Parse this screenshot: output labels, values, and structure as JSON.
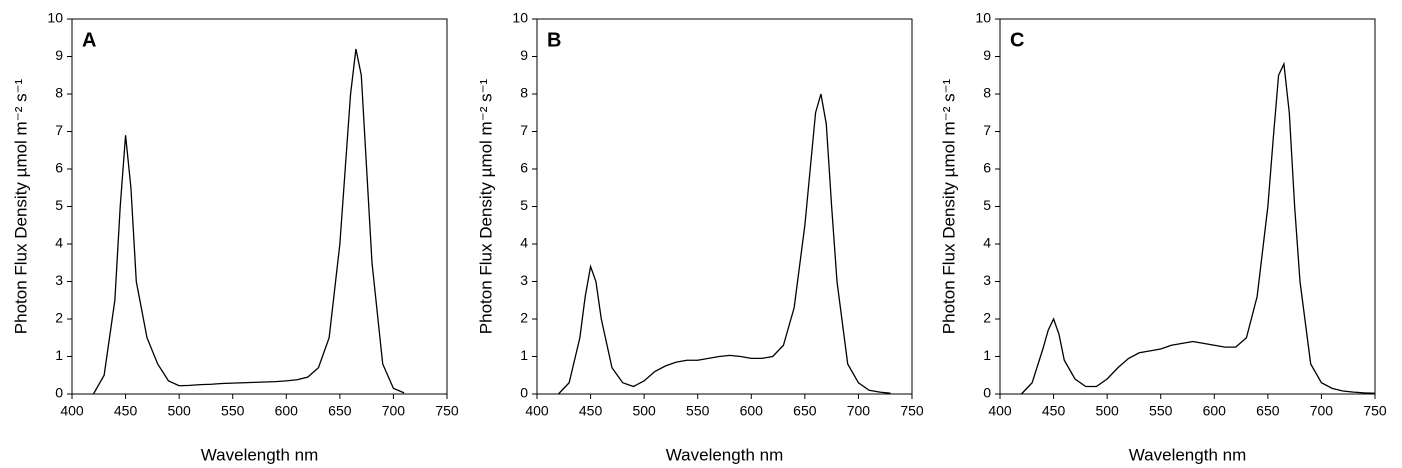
{
  "chart_data": [
    {
      "type": "line",
      "panel_label": "A",
      "xlabel": "Wavelength nm",
      "ylabel": "Photon Flux Density µmol m⁻² s⁻¹",
      "x": [
        420,
        430,
        440,
        445,
        450,
        455,
        460,
        470,
        480,
        490,
        500,
        510,
        520,
        530,
        540,
        550,
        560,
        570,
        580,
        590,
        600,
        610,
        620,
        630,
        640,
        650,
        655,
        660,
        665,
        670,
        675,
        680,
        690,
        700,
        710,
        720,
        730,
        740,
        750
      ],
      "series": [
        {
          "color": "#000000",
          "values": [
            0,
            0.5,
            2.5,
            5,
            6.9,
            5.5,
            3,
            1.5,
            0.8,
            0.35,
            0.22,
            0.23,
            0.25,
            0.26,
            0.28,
            0.29,
            0.3,
            0.31,
            0.32,
            0.33,
            0.35,
            0.38,
            0.45,
            0.7,
            1.5,
            4,
            6,
            8,
            9.2,
            8.5,
            6,
            3.5,
            0.8,
            0.15,
            0.03,
            null,
            null,
            null,
            null
          ]
        }
      ],
      "xlim": [
        400,
        750
      ],
      "xticks": [
        400,
        450,
        500,
        550,
        600,
        650,
        700,
        750
      ],
      "ylim": [
        0,
        10
      ],
      "yticks": [
        0,
        1,
        2,
        3,
        4,
        5,
        6,
        7,
        8,
        9,
        10
      ]
    },
    {
      "type": "line",
      "panel_label": "B",
      "xlabel": "Wavelength nm",
      "ylabel": "Photon Flux Density µmol m⁻² s⁻¹",
      "x": [
        420,
        430,
        440,
        445,
        450,
        455,
        460,
        470,
        480,
        490,
        500,
        510,
        520,
        530,
        540,
        550,
        560,
        570,
        580,
        590,
        600,
        610,
        620,
        630,
        640,
        650,
        655,
        660,
        665,
        670,
        675,
        680,
        690,
        700,
        710,
        720,
        730,
        740,
        750
      ],
      "series": [
        {
          "color": "#000000",
          "values": [
            0,
            0.3,
            1.5,
            2.6,
            3.4,
            3.0,
            2.0,
            0.7,
            0.3,
            0.2,
            0.35,
            0.6,
            0.75,
            0.85,
            0.9,
            0.9,
            0.95,
            1.0,
            1.03,
            1.0,
            0.95,
            0.95,
            1.0,
            1.3,
            2.3,
            4.5,
            6,
            7.5,
            8.0,
            7.2,
            5,
            3,
            0.8,
            0.3,
            0.1,
            0.05,
            0.02,
            null,
            null
          ]
        }
      ],
      "xlim": [
        400,
        750
      ],
      "xticks": [
        400,
        450,
        500,
        550,
        600,
        650,
        700,
        750
      ],
      "ylim": [
        0,
        10
      ],
      "yticks": [
        0,
        1,
        2,
        3,
        4,
        5,
        6,
        7,
        8,
        9,
        10
      ]
    },
    {
      "type": "line",
      "panel_label": "C",
      "xlabel": "Wavelength nm",
      "ylabel": "Photon Flux Density µmol m⁻² s⁻¹",
      "x": [
        420,
        430,
        440,
        445,
        450,
        455,
        460,
        470,
        480,
        490,
        500,
        510,
        520,
        530,
        540,
        550,
        560,
        570,
        580,
        590,
        600,
        610,
        620,
        630,
        640,
        650,
        655,
        660,
        665,
        670,
        675,
        680,
        690,
        700,
        710,
        720,
        730,
        740,
        750
      ],
      "series": [
        {
          "color": "#000000",
          "values": [
            0,
            0.3,
            1.2,
            1.7,
            2.0,
            1.6,
            0.9,
            0.4,
            0.2,
            0.2,
            0.4,
            0.7,
            0.95,
            1.1,
            1.15,
            1.2,
            1.3,
            1.35,
            1.4,
            1.35,
            1.3,
            1.25,
            1.25,
            1.5,
            2.6,
            5,
            6.8,
            8.5,
            8.8,
            7.5,
            5,
            3,
            0.8,
            0.3,
            0.15,
            0.08,
            0.05,
            0.03,
            0.02
          ]
        }
      ],
      "xlim": [
        400,
        750
      ],
      "xticks": [
        400,
        450,
        500,
        550,
        600,
        650,
        700,
        750
      ],
      "ylim": [
        0,
        10
      ],
      "yticks": [
        0,
        1,
        2,
        3,
        4,
        5,
        6,
        7,
        8,
        9,
        10
      ]
    }
  ]
}
